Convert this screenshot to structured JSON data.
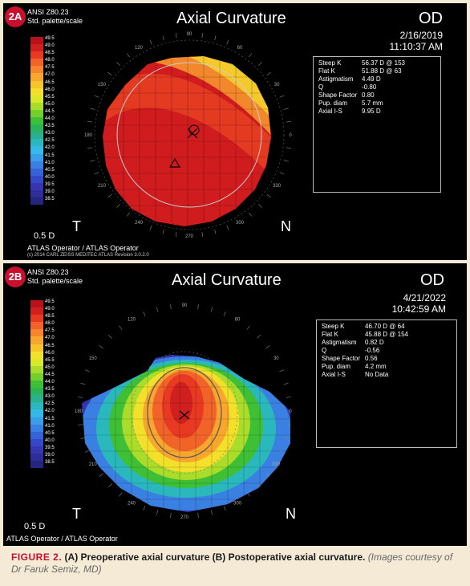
{
  "scale_values": [
    "49.5",
    "49.0",
    "48.5",
    "48.0",
    "47.5",
    "47.0",
    "46.5",
    "46.0",
    "45.5",
    "45.0",
    "44.5",
    "44.0",
    "43.5",
    "43.0",
    "42.5",
    "42.0",
    "41.5",
    "41.0",
    "40.5",
    "40.0",
    "39.5",
    "39.0",
    "38.5"
  ],
  "scale_colors": [
    "#b5121b",
    "#cf1f1f",
    "#e83a22",
    "#f2632a",
    "#f6852b",
    "#f9a62e",
    "#f7c52b",
    "#f3e02a",
    "#d9e82a",
    "#a9dc2b",
    "#74cf2f",
    "#3fbf35",
    "#2bb35a",
    "#29b08c",
    "#2ab8bd",
    "#35b9e6",
    "#3a9ee8",
    "#3a7fe2",
    "#3664d6",
    "#3548c6",
    "#3636b0",
    "#2e2e98",
    "#26267e"
  ],
  "ring_labels": [
    "90",
    "120",
    "150",
    "180",
    "210",
    "240",
    "270",
    "300",
    "330",
    "0",
    "30",
    "60"
  ],
  "panels": [
    {
      "badge": "2A",
      "standard": "ANSI Z80.23",
      "palette": "Std. palette/scale",
      "title": "Axial Curvature",
      "eye": "OD",
      "date": "2/16/2019",
      "time": "11:10:37 AM",
      "info": [
        {
          "label": "Steep K",
          "value": "56.37 D @ 153"
        },
        {
          "label": "Flat K",
          "value": "51.88 D @ 63"
        },
        {
          "label": "Astigmatism",
          "value": "4.49 D"
        },
        {
          "label": "Q",
          "value": "-0.80"
        },
        {
          "label": "Shape Factor",
          "value": "0.80"
        },
        {
          "label": "Pup. diam",
          "value": "5.7 mm"
        },
        {
          "label": "Axial I-S",
          "value": "9.95 D"
        }
      ],
      "left_letter": "T",
      "right_letter": "N",
      "step": "0.5 D",
      "operator": "ATLAS Operator / ATLAS Operator",
      "copyright": "(c) 2014 CARL ZEISS MEDITEC    ATLAS    Revision 3.0.2.0"
    },
    {
      "badge": "2B",
      "standard": "ANSI Z80.23",
      "palette": "Std. palette/scale",
      "title": "Axial Curvature",
      "eye": "OD",
      "date": "4/21/2022",
      "time": "10:42:59 AM",
      "info": [
        {
          "label": "Steep K",
          "value": "46.70 D @ 64"
        },
        {
          "label": "Flat K",
          "value": "45.88 D @ 154"
        },
        {
          "label": "Astigmatism",
          "value": "0.82 D"
        },
        {
          "label": "Q",
          "value": "-0.56"
        },
        {
          "label": "Shape Factor",
          "value": "0.56"
        },
        {
          "label": "Pup. diam",
          "value": "4.2 mm"
        },
        {
          "label": "Axial I-S",
          "value": "No Data"
        }
      ],
      "left_letter": "T",
      "right_letter": "N",
      "step": "0.5 D",
      "operator": "ATLAS Operator / ATLAS Operator"
    }
  ],
  "caption": {
    "label": "FIGURE 2.",
    "text": "(A) Preoperative axial curvature (B) Postoperative axial curvature.",
    "credit": "(Images courtesy of Dr Faruk Semiz, MD)"
  }
}
